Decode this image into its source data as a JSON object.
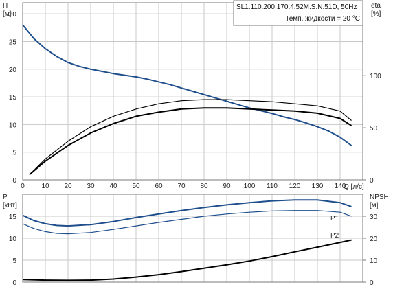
{
  "chart_data": [
    {
      "type": "line",
      "title": "SL1.110.200.170.4.52M.S.N.51D, 50Hz",
      "subtitle": "Темп. жидкости = 20 °C",
      "xlabel": "Q [л/с]",
      "ylabel": "H [м]",
      "y2label": "eta [%]",
      "xlim": [
        0,
        150
      ],
      "ylim": [
        0,
        32
      ],
      "y2lim": [
        0,
        170
      ],
      "xticks": [
        0,
        10,
        20,
        30,
        40,
        50,
        60,
        70,
        80,
        90,
        100,
        110,
        120,
        130,
        140
      ],
      "yticks": [
        0,
        5,
        10,
        15,
        20,
        25,
        30
      ],
      "y2ticks": [
        0,
        50,
        100
      ],
      "grid": true,
      "series": [
        {
          "axis": "left",
          "color": "#1f4e8c",
          "x": [
            0,
            5,
            10,
            15,
            20,
            25,
            30,
            35,
            40,
            45,
            50,
            55,
            60,
            65,
            70,
            75,
            80,
            85,
            90,
            95,
            100,
            105,
            110,
            115,
            120,
            125,
            130,
            135,
            140,
            145
          ],
          "y": [
            28.0,
            25.5,
            23.7,
            22.3,
            21.2,
            20.5,
            20.0,
            19.6,
            19.2,
            18.9,
            18.6,
            18.2,
            17.7,
            17.2,
            16.6,
            16.0,
            15.4,
            14.8,
            14.2,
            13.6,
            13.0,
            12.5,
            12.0,
            11.4,
            10.9,
            10.3,
            9.6,
            8.8,
            7.7,
            6.2
          ]
        },
        {
          "axis": "right",
          "color": "#000000",
          "x": [
            3,
            10,
            20,
            30,
            40,
            50,
            60,
            70,
            80,
            90,
            100,
            110,
            120,
            130,
            140,
            145
          ],
          "y": [
            5,
            18,
            33,
            45,
            54,
            61,
            65,
            68,
            69,
            69,
            68,
            67,
            66,
            64,
            59,
            52
          ]
        },
        {
          "axis": "right",
          "color": "#000000",
          "x": [
            3,
            10,
            20,
            30,
            40,
            50,
            60,
            70,
            80,
            90,
            100,
            110,
            120,
            130,
            140,
            145
          ],
          "y": [
            5,
            20,
            37,
            51,
            61,
            68,
            73,
            76,
            77,
            77,
            76,
            75,
            73,
            71,
            66,
            57
          ]
        }
      ]
    },
    {
      "type": "line",
      "ylabel": "P [кВт]",
      "y2label": "NPSH [м]",
      "xlim": [
        0,
        150
      ],
      "ylim": [
        0,
        20
      ],
      "y2lim": [
        0,
        40
      ],
      "yticks": [
        0,
        5,
        10,
        15
      ],
      "y2ticks": [
        0,
        10,
        20,
        30
      ],
      "grid": true,
      "series": [
        {
          "name": "P1",
          "axis": "left",
          "color": "#1f4e8c",
          "x": [
            0,
            5,
            10,
            15,
            20,
            30,
            40,
            50,
            60,
            70,
            80,
            90,
            100,
            110,
            120,
            130,
            140,
            145
          ],
          "y": [
            15.2,
            14.0,
            13.3,
            12.9,
            12.8,
            13.1,
            13.8,
            14.7,
            15.5,
            16.3,
            17.0,
            17.6,
            18.1,
            18.5,
            18.7,
            18.7,
            18.1,
            17.2
          ]
        },
        {
          "name": "P2",
          "axis": "left",
          "color": "#1f4e8c",
          "x": [
            0,
            5,
            10,
            15,
            20,
            30,
            40,
            50,
            60,
            70,
            80,
            90,
            100,
            110,
            120,
            130,
            140,
            145
          ],
          "y": [
            13.3,
            12.2,
            11.5,
            11.1,
            11.0,
            11.3,
            12.0,
            12.8,
            13.6,
            14.3,
            15.0,
            15.5,
            15.9,
            16.2,
            16.3,
            16.3,
            15.9,
            15.0
          ]
        },
        {
          "axis": "right",
          "color": "#000000",
          "x": [
            0,
            10,
            20,
            30,
            40,
            50,
            60,
            70,
            80,
            90,
            100,
            110,
            120,
            130,
            140,
            145
          ],
          "y": [
            1.2,
            0.9,
            0.8,
            0.9,
            1.4,
            2.3,
            3.4,
            4.8,
            6.3,
            7.9,
            9.6,
            11.6,
            13.8,
            15.9,
            18.1,
            19.2
          ]
        }
      ]
    }
  ]
}
